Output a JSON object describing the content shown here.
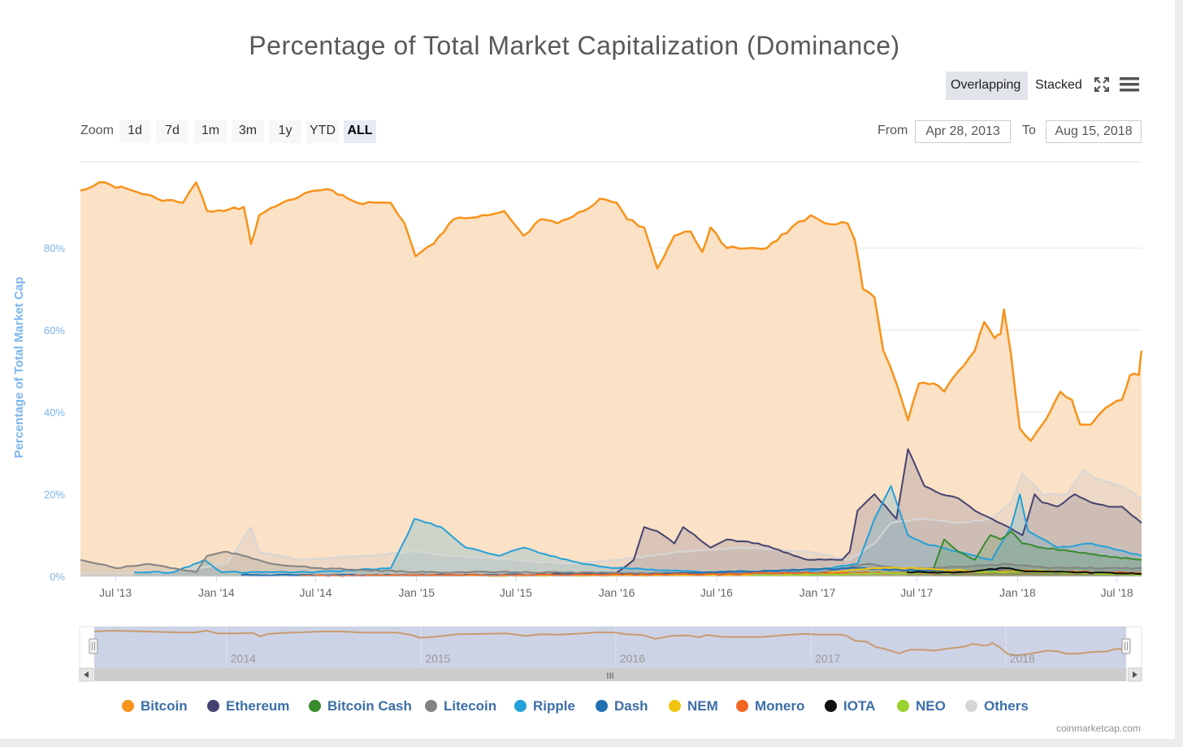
{
  "header": {
    "title": "Percentage of Total Market Capitalization (Dominance)",
    "mode_overlapping": "Overlapping",
    "mode_stacked": "Stacked",
    "fullscreen_icon": "fullscreen-icon",
    "menu_icon": "hamburger-menu-icon"
  },
  "toolbar": {
    "zoom_label": "Zoom",
    "zoom_buttons": [
      "1d",
      "7d",
      "1m",
      "3m",
      "1y",
      "YTD",
      "ALL"
    ],
    "zoom_selected": "ALL",
    "from_label": "From",
    "from_value": "Apr 28, 2013",
    "to_label": "To",
    "to_value": "Aug 15, 2018"
  },
  "navigator": {
    "year_labels": [
      "2014",
      "2015",
      "2016",
      "2017",
      "2018"
    ],
    "scroll_grip": "III"
  },
  "credits": "coinmarketcap.com",
  "chart_data": {
    "type": "area",
    "title": "Percentage of Total Market Capitalization (Dominance)",
    "ylabel": "Percentage of Total Market Cap",
    "xlabel": "",
    "x_range": [
      "2013-04-28",
      "2018-08-15"
    ],
    "ylim": [
      0,
      100
    ],
    "y_ticks": [
      "0%",
      "20%",
      "40%",
      "60%",
      "80%"
    ],
    "x_ticks": [
      "Jul '13",
      "Jan '14",
      "Jul '14",
      "Jan '15",
      "Jul '15",
      "Jan '16",
      "Jul '16",
      "Jan '17",
      "Jul '17",
      "Jan '18",
      "Jul '18"
    ],
    "grid": true,
    "legend_position": "bottom",
    "series": [
      {
        "name": "Bitcoin",
        "color": "#f7931a",
        "fill": "#fbe1c6",
        "points": [
          [
            "2013-04-28",
            94
          ],
          [
            "2013-06-01",
            96
          ],
          [
            "2013-08-01",
            94
          ],
          [
            "2013-09-15",
            92
          ],
          [
            "2013-11-01",
            91
          ],
          [
            "2013-11-25",
            96
          ],
          [
            "2013-12-15",
            89
          ],
          [
            "2014-01-15",
            89
          ],
          [
            "2014-02-20",
            90
          ],
          [
            "2014-03-05",
            81
          ],
          [
            "2014-03-20",
            88
          ],
          [
            "2014-05-01",
            91
          ],
          [
            "2014-07-01",
            94
          ],
          [
            "2014-08-01",
            94
          ],
          [
            "2014-09-15",
            91
          ],
          [
            "2014-11-15",
            91
          ],
          [
            "2014-12-10",
            86
          ],
          [
            "2014-12-30",
            78
          ],
          [
            "2015-02-01",
            81
          ],
          [
            "2015-03-10",
            87
          ],
          [
            "2015-05-01",
            88
          ],
          [
            "2015-06-10",
            89
          ],
          [
            "2015-07-15",
            83
          ],
          [
            "2015-08-15",
            87
          ],
          [
            "2015-09-15",
            86
          ],
          [
            "2015-11-01",
            89
          ],
          [
            "2015-12-01",
            92
          ],
          [
            "2016-01-01",
            91
          ],
          [
            "2016-01-20",
            87
          ],
          [
            "2016-02-20",
            85
          ],
          [
            "2016-03-15",
            75
          ],
          [
            "2016-04-15",
            83
          ],
          [
            "2016-05-15",
            84
          ],
          [
            "2016-06-05",
            79
          ],
          [
            "2016-06-20",
            85
          ],
          [
            "2016-07-20",
            80
          ],
          [
            "2016-09-01",
            80
          ],
          [
            "2016-10-01",
            80
          ],
          [
            "2016-11-15",
            85
          ],
          [
            "2016-12-20",
            88
          ],
          [
            "2017-01-15",
            86
          ],
          [
            "2017-02-25",
            86
          ],
          [
            "2017-03-10",
            82
          ],
          [
            "2017-03-25",
            70
          ],
          [
            "2017-04-15",
            68
          ],
          [
            "2017-05-01",
            55
          ],
          [
            "2017-05-25",
            47
          ],
          [
            "2017-06-15",
            38
          ],
          [
            "2017-07-05",
            47
          ],
          [
            "2017-08-01",
            47
          ],
          [
            "2017-08-20",
            45
          ],
          [
            "2017-09-15",
            50
          ],
          [
            "2017-10-15",
            55
          ],
          [
            "2017-11-01",
            62
          ],
          [
            "2017-11-20",
            58
          ],
          [
            "2017-12-01",
            59
          ],
          [
            "2017-12-07",
            65
          ],
          [
            "2017-12-20",
            54
          ],
          [
            "2018-01-05",
            36
          ],
          [
            "2018-01-25",
            33
          ],
          [
            "2018-02-15",
            37
          ],
          [
            "2018-03-01",
            40
          ],
          [
            "2018-03-20",
            45
          ],
          [
            "2018-04-10",
            43
          ],
          [
            "2018-04-25",
            37
          ],
          [
            "2018-05-15",
            37
          ],
          [
            "2018-06-10",
            41
          ],
          [
            "2018-07-10",
            43
          ],
          [
            "2018-07-25",
            49
          ],
          [
            "2018-08-10",
            49
          ],
          [
            "2018-08-15",
            55
          ]
        ]
      },
      {
        "name": "Ethereum",
        "color": "#454372",
        "fill": "rgba(69,67,114,0.18)",
        "points": [
          [
            "2015-08-07",
            0.5
          ],
          [
            "2015-12-31",
            0.8
          ],
          [
            "2016-02-01",
            4
          ],
          [
            "2016-02-20",
            12
          ],
          [
            "2016-03-15",
            11
          ],
          [
            "2016-04-15",
            8
          ],
          [
            "2016-05-01",
            12
          ],
          [
            "2016-06-20",
            7
          ],
          [
            "2016-07-20",
            9
          ],
          [
            "2016-09-15",
            8
          ],
          [
            "2016-12-15",
            4
          ],
          [
            "2017-02-15",
            4
          ],
          [
            "2017-03-01",
            6
          ],
          [
            "2017-03-15",
            16
          ],
          [
            "2017-04-15",
            20
          ],
          [
            "2017-05-25",
            14
          ],
          [
            "2017-06-15",
            31
          ],
          [
            "2017-07-15",
            22
          ],
          [
            "2017-08-15",
            20
          ],
          [
            "2017-09-15",
            19
          ],
          [
            "2017-10-15",
            16
          ],
          [
            "2017-11-15",
            14
          ],
          [
            "2017-12-15",
            12
          ],
          [
            "2018-01-10",
            10
          ],
          [
            "2018-02-01",
            20
          ],
          [
            "2018-02-15",
            18
          ],
          [
            "2018-03-15",
            17
          ],
          [
            "2018-04-15",
            20
          ],
          [
            "2018-05-15",
            18
          ],
          [
            "2018-06-15",
            17
          ],
          [
            "2018-07-10",
            17
          ],
          [
            "2018-08-15",
            13
          ]
        ]
      },
      {
        "name": "Bitcoin Cash",
        "color": "#3a8a2e",
        "fill": "rgba(58,138,46,0.18)",
        "points": [
          [
            "2017-08-01",
            2
          ],
          [
            "2017-08-20",
            9
          ],
          [
            "2017-09-15",
            6
          ],
          [
            "2017-10-15",
            4
          ],
          [
            "2017-11-12",
            10
          ],
          [
            "2017-12-01",
            9
          ],
          [
            "2017-12-20",
            11
          ],
          [
            "2018-01-10",
            8
          ],
          [
            "2018-02-15",
            7
          ],
          [
            "2018-04-15",
            6
          ],
          [
            "2018-06-01",
            5
          ],
          [
            "2018-08-15",
            4
          ]
        ]
      },
      {
        "name": "Litecoin",
        "color": "#838383",
        "fill": "rgba(131,131,131,0.2)",
        "points": [
          [
            "2013-04-28",
            4
          ],
          [
            "2013-06-01",
            3
          ],
          [
            "2013-07-01",
            2
          ],
          [
            "2013-09-01",
            3
          ],
          [
            "2013-11-25",
            1
          ],
          [
            "2013-12-15",
            5
          ],
          [
            "2014-01-20",
            6
          ],
          [
            "2014-04-15",
            3
          ],
          [
            "2014-07-01",
            2
          ],
          [
            "2014-10-01",
            1.5
          ],
          [
            "2015-01-01",
            1
          ],
          [
            "2015-07-01",
            1
          ],
          [
            "2016-01-01",
            0.8
          ],
          [
            "2017-01-01",
            0.8
          ],
          [
            "2017-04-01",
            3
          ],
          [
            "2017-06-01",
            2
          ],
          [
            "2017-08-01",
            2
          ],
          [
            "2017-12-15",
            3
          ],
          [
            "2018-03-01",
            2
          ],
          [
            "2018-08-15",
            2
          ]
        ]
      },
      {
        "name": "Ripple",
        "color": "#23a1d9",
        "fill": "rgba(35,161,217,0.2)",
        "points": [
          [
            "2013-08-04",
            1
          ],
          [
            "2013-10-15",
            1
          ],
          [
            "2013-12-10",
            4
          ],
          [
            "2014-01-10",
            1
          ],
          [
            "2014-07-01",
            1
          ],
          [
            "2014-11-15",
            2
          ],
          [
            "2014-12-15",
            10
          ],
          [
            "2014-12-28",
            14
          ],
          [
            "2015-02-15",
            12
          ],
          [
            "2015-04-01",
            7
          ],
          [
            "2015-06-01",
            5
          ],
          [
            "2015-07-15",
            7
          ],
          [
            "2015-09-01",
            5
          ],
          [
            "2015-11-01",
            3
          ],
          [
            "2016-01-01",
            2
          ],
          [
            "2016-07-01",
            1
          ],
          [
            "2016-12-01",
            1
          ],
          [
            "2017-03-15",
            3
          ],
          [
            "2017-04-15",
            14
          ],
          [
            "2017-05-15",
            22
          ],
          [
            "2017-06-15",
            10
          ],
          [
            "2017-07-15",
            8
          ],
          [
            "2017-09-15",
            6
          ],
          [
            "2017-11-15",
            4
          ],
          [
            "2017-12-20",
            12
          ],
          [
            "2018-01-05",
            20
          ],
          [
            "2018-01-20",
            11
          ],
          [
            "2018-03-15",
            7
          ],
          [
            "2018-05-15",
            8
          ],
          [
            "2018-08-15",
            5
          ]
        ]
      },
      {
        "name": "Dash",
        "color": "#1f6fb0",
        "fill": "rgba(31,111,176,0.15)",
        "points": [
          [
            "2014-02-15",
            0.3
          ],
          [
            "2015-01-01",
            0.3
          ],
          [
            "2016-03-01",
            0.5
          ],
          [
            "2017-03-15",
            2
          ],
          [
            "2017-06-01",
            1.5
          ],
          [
            "2017-12-15",
            1.3
          ],
          [
            "2018-08-15",
            0.6
          ]
        ]
      },
      {
        "name": "NEM",
        "color": "#f1c40f",
        "fill": "rgba(241,196,15,0.2)",
        "points": [
          [
            "2015-04-01",
            0.1
          ],
          [
            "2016-12-01",
            0.3
          ],
          [
            "2017-04-15",
            2
          ],
          [
            "2017-06-15",
            2
          ],
          [
            "2017-12-01",
            1
          ],
          [
            "2018-01-10",
            1.5
          ],
          [
            "2018-08-15",
            0.5
          ]
        ]
      },
      {
        "name": "Monero",
        "color": "#f26522",
        "fill": "rgba(242,101,34,0.15)",
        "points": [
          [
            "2014-06-01",
            0.1
          ],
          [
            "2016-08-01",
            0.5
          ],
          [
            "2016-10-01",
            0.8
          ],
          [
            "2017-06-15",
            0.8
          ],
          [
            "2017-12-15",
            1.3
          ],
          [
            "2018-08-15",
            0.8
          ]
        ]
      },
      {
        "name": "IOTA",
        "color": "#111111",
        "fill": "rgba(17,17,17,0.1)",
        "points": [
          [
            "2017-06-13",
            1
          ],
          [
            "2017-09-15",
            1
          ],
          [
            "2017-12-10",
            2
          ],
          [
            "2018-01-15",
            1.2
          ],
          [
            "2018-08-15",
            0.6
          ]
        ]
      },
      {
        "name": "NEO",
        "color": "#9ad12c",
        "fill": "rgba(154,209,44,0.15)",
        "points": [
          [
            "2016-09-01",
            0.1
          ],
          [
            "2017-06-01",
            0.8
          ],
          [
            "2017-09-15",
            1
          ],
          [
            "2018-01-15",
            1.2
          ],
          [
            "2018-08-15",
            0.4
          ]
        ]
      },
      {
        "name": "Others",
        "color": "#d6d6d6",
        "fill": "rgba(190,190,190,0.25)",
        "points": [
          [
            "2013-04-28",
            0.5
          ],
          [
            "2013-10-01",
            1
          ],
          [
            "2014-01-20",
            3
          ],
          [
            "2014-03-05",
            12
          ],
          [
            "2014-03-20",
            6
          ],
          [
            "2014-06-01",
            4
          ],
          [
            "2014-10-01",
            5
          ],
          [
            "2015-01-01",
            6
          ],
          [
            "2015-03-01",
            5
          ],
          [
            "2015-07-01",
            4
          ],
          [
            "2015-10-01",
            3
          ],
          [
            "2016-01-01",
            4
          ],
          [
            "2016-05-01",
            6
          ],
          [
            "2016-09-01",
            7
          ],
          [
            "2016-12-15",
            6
          ],
          [
            "2017-03-01",
            4
          ],
          [
            "2017-04-15",
            8
          ],
          [
            "2017-05-15",
            13
          ],
          [
            "2017-07-15",
            14
          ],
          [
            "2017-09-15",
            13
          ],
          [
            "2017-11-15",
            14
          ],
          [
            "2017-12-20",
            18
          ],
          [
            "2018-01-10",
            25
          ],
          [
            "2018-02-15",
            20
          ],
          [
            "2018-04-01",
            20
          ],
          [
            "2018-05-01",
            26
          ],
          [
            "2018-05-20",
            24
          ],
          [
            "2018-07-10",
            22
          ],
          [
            "2018-08-15",
            19
          ]
        ]
      }
    ]
  }
}
